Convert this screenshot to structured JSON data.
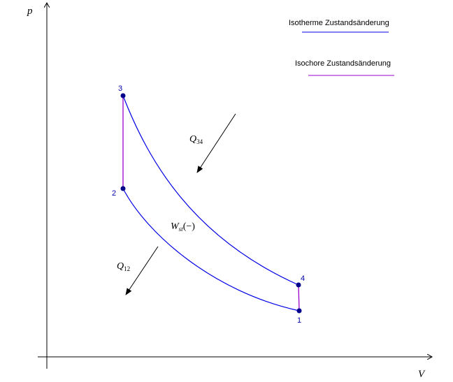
{
  "axes": {
    "x_label": "V",
    "y_label": "p"
  },
  "legend": {
    "items": [
      {
        "label": "Isotherme Zustandsänderung",
        "color": "#0000e6"
      },
      {
        "label": "Isochore Zustandsänderung",
        "color": "#9900cc"
      }
    ]
  },
  "points": [
    {
      "label": "1"
    },
    {
      "label": "2"
    },
    {
      "label": "3"
    },
    {
      "label": "4"
    }
  ],
  "annotations": {
    "q34_main": "Q",
    "q34_sub": "34",
    "q12_main": "Q",
    "q12_sub": "12",
    "w_main": "W",
    "w_sub": "st",
    "w_sign": "(−)"
  },
  "colors": {
    "isotherm": "#0000e6",
    "isochor": "#9900cc",
    "point": "#00008b",
    "axis": "#000000"
  }
}
